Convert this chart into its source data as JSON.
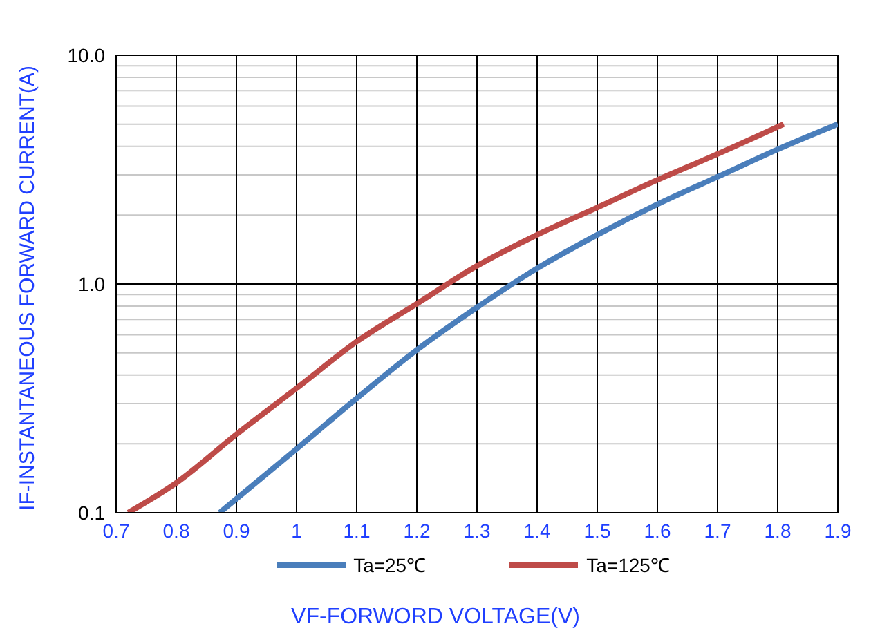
{
  "chart_data": {
    "type": "line",
    "xlabel": "VF-FORWORD VOLTAGE(V)",
    "ylabel": "IF-INSTANTANEOUS FORWARD CURRENT(A)",
    "series": [
      {
        "name": "Ta=25℃",
        "color": "#4a7ebb",
        "x": [
          0.872,
          0.9,
          1.0,
          1.1,
          1.2,
          1.3,
          1.4,
          1.5,
          1.6,
          1.7,
          1.8,
          1.9
        ],
        "values": [
          0.1,
          0.115,
          0.19,
          0.316,
          0.515,
          0.79,
          1.17,
          1.64,
          2.23,
          2.94,
          3.88,
          5.0
        ]
      },
      {
        "name": "Ta=125℃",
        "color": "#be4b48",
        "x": [
          0.72,
          0.8,
          0.9,
          1.0,
          1.1,
          1.2,
          1.3,
          1.4,
          1.5,
          1.6,
          1.7,
          1.81
        ],
        "values": [
          0.1,
          0.135,
          0.22,
          0.35,
          0.56,
          0.82,
          1.2,
          1.64,
          2.16,
          2.85,
          3.7,
          5.0
        ]
      }
    ],
    "xlim": [
      0.7,
      1.9
    ],
    "xticks": [
      0.7,
      0.8,
      0.9,
      1,
      1.1,
      1.2,
      1.3,
      1.4,
      1.5,
      1.6,
      1.7,
      1.8,
      1.9
    ],
    "ylim": [
      0.1,
      10
    ],
    "yticks": [
      {
        "value": 0.1,
        "label": "0.1"
      },
      {
        "value": 0.2,
        "label": null
      },
      {
        "value": 0.3,
        "label": null
      },
      {
        "value": 0.4,
        "label": null
      },
      {
        "value": 0.5,
        "label": null
      },
      {
        "value": 0.6,
        "label": null
      },
      {
        "value": 0.7,
        "label": null
      },
      {
        "value": 0.8,
        "label": null
      },
      {
        "value": 0.9,
        "label": null
      },
      {
        "value": 1,
        "label": "1.0"
      },
      {
        "value": 2,
        "label": null
      },
      {
        "value": 3,
        "label": null
      },
      {
        "value": 4,
        "label": null
      },
      {
        "value": 5,
        "label": null
      },
      {
        "value": 6,
        "label": null
      },
      {
        "value": 7,
        "label": null
      },
      {
        "value": 8,
        "label": null
      },
      {
        "value": 9,
        "label": null
      },
      {
        "value": 10,
        "label": "10.0"
      }
    ],
    "log": true,
    "grid": true,
    "legend": "bottom",
    "marker": "none",
    "line_style": "solid"
  }
}
